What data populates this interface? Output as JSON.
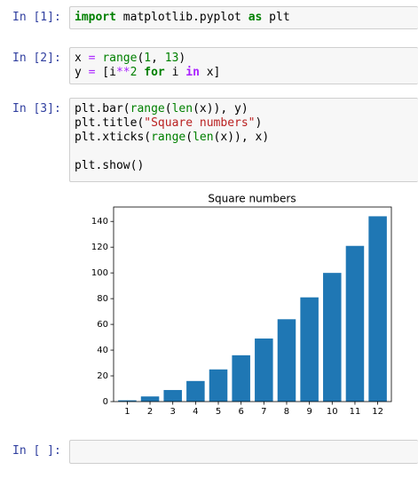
{
  "cells": [
    {
      "prompt": "In [1]:",
      "lines": [
        [
          {
            "text": "import",
            "kind": "kw"
          },
          {
            "text": " matplotlib.pyplot ",
            "kind": "plain"
          },
          {
            "text": "as",
            "kind": "kw"
          },
          {
            "text": " plt",
            "kind": "plain"
          }
        ]
      ]
    },
    {
      "prompt": "In [2]:",
      "lines": [
        [
          {
            "text": "x ",
            "kind": "plain"
          },
          {
            "text": "=",
            "kind": "op"
          },
          {
            "text": " ",
            "kind": "plain"
          },
          {
            "text": "range",
            "kind": "builtin"
          },
          {
            "text": "(",
            "kind": "plain"
          },
          {
            "text": "1",
            "kind": "num"
          },
          {
            "text": ", ",
            "kind": "plain"
          },
          {
            "text": "13",
            "kind": "num"
          },
          {
            "text": ")",
            "kind": "plain"
          }
        ],
        [
          {
            "text": "y ",
            "kind": "plain"
          },
          {
            "text": "=",
            "kind": "op"
          },
          {
            "text": " [i",
            "kind": "plain"
          },
          {
            "text": "**",
            "kind": "op"
          },
          {
            "text": "2",
            "kind": "num"
          },
          {
            "text": " ",
            "kind": "plain"
          },
          {
            "text": "for",
            "kind": "kw"
          },
          {
            "text": " i ",
            "kind": "plain"
          },
          {
            "text": "in",
            "kind": "opword"
          },
          {
            "text": " x]",
            "kind": "plain"
          }
        ]
      ]
    },
    {
      "prompt": "In [3]:",
      "lines": [
        [
          {
            "text": "plt.bar(",
            "kind": "plain"
          },
          {
            "text": "range",
            "kind": "builtin"
          },
          {
            "text": "(",
            "kind": "plain"
          },
          {
            "text": "len",
            "kind": "builtin"
          },
          {
            "text": "(x)), y)",
            "kind": "plain"
          }
        ],
        [
          {
            "text": "plt.title(",
            "kind": "plain"
          },
          {
            "text": "\"Square numbers\"",
            "kind": "str"
          },
          {
            "text": ")",
            "kind": "plain"
          }
        ],
        [
          {
            "text": "plt.xticks(",
            "kind": "plain"
          },
          {
            "text": "range",
            "kind": "builtin"
          },
          {
            "text": "(",
            "kind": "plain"
          },
          {
            "text": "len",
            "kind": "builtin"
          },
          {
            "text": "(x)), x)",
            "kind": "plain"
          }
        ],
        [],
        [
          {
            "text": "plt.show()",
            "kind": "plain"
          }
        ]
      ]
    },
    {
      "prompt": "In [ ]:",
      "lines": []
    }
  ],
  "chart_data": {
    "type": "bar",
    "title": "Square numbers",
    "categories": [
      "1",
      "2",
      "3",
      "4",
      "5",
      "6",
      "7",
      "8",
      "9",
      "10",
      "11",
      "12"
    ],
    "values": [
      1,
      4,
      9,
      16,
      25,
      36,
      49,
      64,
      81,
      100,
      121,
      144
    ],
    "color": "#1f77b4",
    "ylim": [
      0,
      151.2
    ],
    "yticks": [
      0,
      20,
      40,
      60,
      80,
      100,
      120,
      140
    ],
    "grid": false
  }
}
